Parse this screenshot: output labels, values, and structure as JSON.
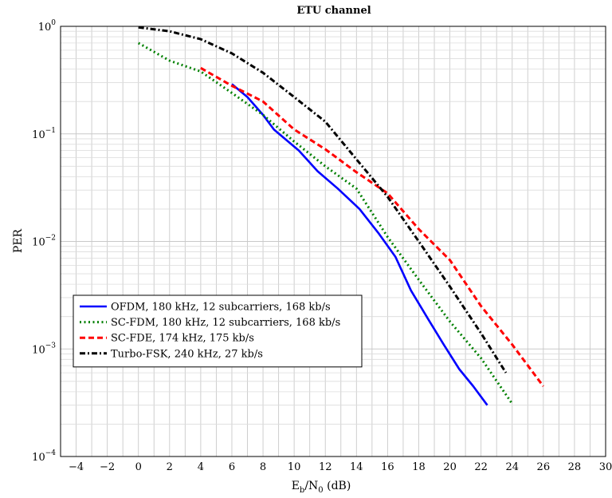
{
  "chart_data": {
    "type": "line",
    "title": "ETU channel",
    "xlabel": "E_b/N_0 (dB)",
    "xlabel_base": "E",
    "xlabel_sub1": "b",
    "xlabel_mid": "/N",
    "xlabel_sub2": "0",
    "xlabel_tail": " (dB)",
    "ylabel": "PER",
    "xlim": [
      -5,
      30
    ],
    "ylim": [
      0.0001,
      1
    ],
    "yscale": "log",
    "grid": true,
    "legend_position": "bottom-left",
    "xticks": [
      "−4",
      "−2",
      "0",
      "2",
      "4",
      "6",
      "8",
      "10",
      "12",
      "14",
      "16",
      "18",
      "20",
      "22",
      "24",
      "26",
      "28",
      "30"
    ],
    "xtick_values": [
      -4,
      -2,
      0,
      2,
      4,
      6,
      8,
      10,
      12,
      14,
      16,
      18,
      20,
      22,
      24,
      26,
      28,
      30
    ],
    "yticks": [
      {
        "value": 1,
        "base": "10",
        "exp": "0"
      },
      {
        "value": 0.1,
        "base": "10",
        "exp": "−1"
      },
      {
        "value": 0.01,
        "base": "10",
        "exp": "−2"
      },
      {
        "value": 0.001,
        "base": "10",
        "exp": "−3"
      },
      {
        "value": 0.0001,
        "base": "10",
        "exp": "−4"
      }
    ],
    "series": [
      {
        "name": "OFDM, 180 kHz, 12 subcarriers, 168 kb/s",
        "color": "#0000ff",
        "style": "solid",
        "x": [
          6,
          7,
          8,
          8.7,
          10.3,
          11.5,
          12.8,
          14.2,
          15.4,
          16.5,
          17.5,
          18.6,
          19.6,
          20.6,
          21.5,
          22.4
        ],
        "y": [
          0.29,
          0.22,
          0.15,
          0.11,
          0.07,
          0.045,
          0.031,
          0.02,
          0.012,
          0.0072,
          0.0035,
          0.0019,
          0.0011,
          0.00065,
          0.00045,
          0.0003
        ]
      },
      {
        "name": "SC-FDM, 180 kHz, 12 subcarriers, 168 kb/s",
        "color": "#008000",
        "style": "dotted",
        "x": [
          0,
          2,
          4,
          6,
          8,
          10,
          12,
          14,
          16,
          18,
          20,
          22,
          24
        ],
        "y": [
          0.7,
          0.48,
          0.38,
          0.24,
          0.15,
          0.085,
          0.05,
          0.031,
          0.011,
          0.0044,
          0.0018,
          0.00082,
          0.00031
        ]
      },
      {
        "name": "SC-FDE, 174 kHz, 175 kb/s",
        "color": "#ff0000",
        "style": "dashed",
        "x": [
          4,
          6,
          8,
          10,
          12,
          14,
          16,
          18,
          20,
          22,
          24,
          26
        ],
        "y": [
          0.41,
          0.28,
          0.2,
          0.11,
          0.072,
          0.044,
          0.028,
          0.013,
          0.0067,
          0.0025,
          0.0011,
          0.00045
        ]
      },
      {
        "name": "Turbo-FSK, 240 kHz, 27 kb/s",
        "color": "#000000",
        "style": "dashdot",
        "x": [
          0,
          2,
          4,
          6,
          8,
          10,
          12,
          14,
          16,
          18,
          20,
          22,
          23.6
        ],
        "y": [
          0.98,
          0.9,
          0.76,
          0.56,
          0.37,
          0.22,
          0.13,
          0.058,
          0.026,
          0.01,
          0.0038,
          0.0014,
          0.0006
        ]
      }
    ]
  }
}
